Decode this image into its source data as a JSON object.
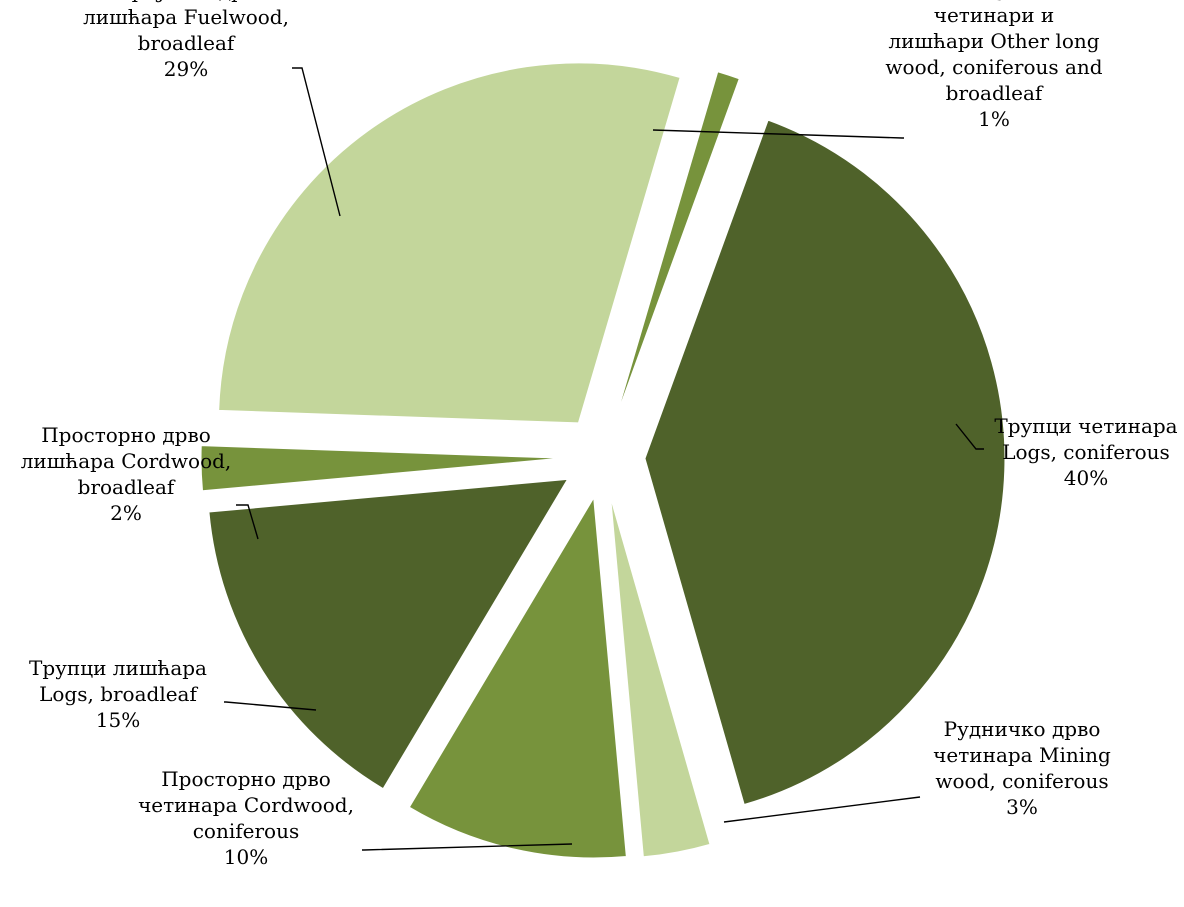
{
  "chart_data": {
    "type": "pie",
    "title": "",
    "slices": [
      {
        "label": "Трупци четинара Logs, coniferous",
        "value": 40,
        "percent_label": "40%",
        "color": "#4f622a"
      },
      {
        "label": "Рудничко дрво четинара Mining wood, coniferous",
        "value": 3,
        "percent_label": "3%",
        "color": "#c3d69b"
      },
      {
        "label": "Просторно дрво четинара Cordwood, coniferous",
        "value": 10,
        "percent_label": "10%",
        "color": "#77933c"
      },
      {
        "label": "Трупци лишћара Logs, broadleaf",
        "value": 15,
        "percent_label": "15%",
        "color": "#4f622a"
      },
      {
        "label": "Просторно дрво лишћара Cordwood, broadleaf",
        "value": 2,
        "percent_label": "2%",
        "color": "#77933c"
      },
      {
        "label": "Огријевно дрво лишћара  Fuelwood, broadleaf",
        "value": 29,
        "percent_label": "29%",
        "color": "#c3d69b"
      },
      {
        "label": "Остало дуго дрво четинари и лишћари Other long wood, coniferous and broadleaf",
        "value": 1,
        "percent_label": "1%",
        "color": "#77933c"
      }
    ],
    "label_lines": [
      [
        "Трупци четинара",
        "Logs, coniferous",
        "40%"
      ],
      [
        "Рудничко дрво",
        "четинара Mining",
        "wood, coniferous",
        "3%"
      ],
      [
        "Просторно дрво",
        "четинара Cordwood,",
        "coniferous",
        "10%"
      ],
      [
        "Трупци лишћара",
        "Logs, broadleaf",
        "15%"
      ],
      [
        "Просторно дрво",
        "лишћара Cordwood,",
        "broadleaf",
        "2%"
      ],
      [
        "Огријевно дрво",
        "лишћара  Fuelwood,",
        "broadleaf",
        "29%"
      ],
      [
        "Остало дуго дрво",
        "четинари и",
        "лишћари Other long",
        "wood, coniferous and",
        "broadleaf",
        "1%"
      ]
    ],
    "exploded": true,
    "legend": "none"
  }
}
